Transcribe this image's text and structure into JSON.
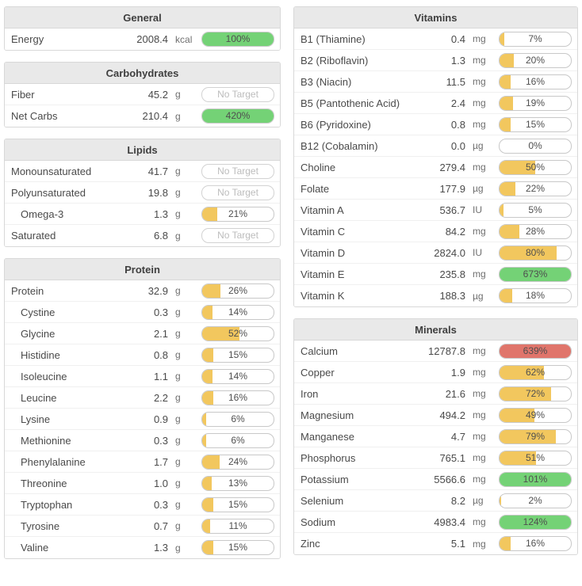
{
  "labels": {
    "no_target": "No Target"
  },
  "colors": {
    "yellow": "#f2c75e",
    "green": "#74d276",
    "red": "#e0756b"
  },
  "layout": [
    [
      "general",
      "carbohydrates",
      "lipids",
      "protein"
    ],
    [
      "vitamins",
      "minerals"
    ]
  ],
  "panels": {
    "general": {
      "title": "General",
      "rows": [
        {
          "label": "Energy",
          "value": "2008.4",
          "unit": "kcal",
          "pct": "100%",
          "color": "green",
          "indent": false
        }
      ]
    },
    "carbohydrates": {
      "title": "Carbohydrates",
      "rows": [
        {
          "label": "Fiber",
          "value": "45.2",
          "unit": "g",
          "pct": "",
          "color": "none",
          "indent": false
        },
        {
          "label": "Net Carbs",
          "value": "210.4",
          "unit": "g",
          "pct": "420%",
          "color": "green",
          "indent": false
        }
      ]
    },
    "lipids": {
      "title": "Lipids",
      "rows": [
        {
          "label": "Monounsaturated",
          "value": "41.7",
          "unit": "g",
          "pct": "",
          "color": "none",
          "indent": false
        },
        {
          "label": "Polyunsaturated",
          "value": "19.8",
          "unit": "g",
          "pct": "",
          "color": "none",
          "indent": false
        },
        {
          "label": "Omega-3",
          "value": "1.3",
          "unit": "g",
          "pct": "21%",
          "color": "yellow",
          "indent": true
        },
        {
          "label": "Saturated",
          "value": "6.8",
          "unit": "g",
          "pct": "",
          "color": "none",
          "indent": false
        }
      ]
    },
    "protein": {
      "title": "Protein",
      "rows": [
        {
          "label": "Protein",
          "value": "32.9",
          "unit": "g",
          "pct": "26%",
          "color": "yellow",
          "indent": false
        },
        {
          "label": "Cystine",
          "value": "0.3",
          "unit": "g",
          "pct": "14%",
          "color": "yellow",
          "indent": true
        },
        {
          "label": "Glycine",
          "value": "2.1",
          "unit": "g",
          "pct": "52%",
          "color": "yellow",
          "indent": true
        },
        {
          "label": "Histidine",
          "value": "0.8",
          "unit": "g",
          "pct": "15%",
          "color": "yellow",
          "indent": true
        },
        {
          "label": "Isoleucine",
          "value": "1.1",
          "unit": "g",
          "pct": "14%",
          "color": "yellow",
          "indent": true
        },
        {
          "label": "Leucine",
          "value": "2.2",
          "unit": "g",
          "pct": "16%",
          "color": "yellow",
          "indent": true
        },
        {
          "label": "Lysine",
          "value": "0.9",
          "unit": "g",
          "pct": "6%",
          "color": "yellow",
          "indent": true
        },
        {
          "label": "Methionine",
          "value": "0.3",
          "unit": "g",
          "pct": "6%",
          "color": "yellow",
          "indent": true
        },
        {
          "label": "Phenylalanine",
          "value": "1.7",
          "unit": "g",
          "pct": "24%",
          "color": "yellow",
          "indent": true
        },
        {
          "label": "Threonine",
          "value": "1.0",
          "unit": "g",
          "pct": "13%",
          "color": "yellow",
          "indent": true
        },
        {
          "label": "Tryptophan",
          "value": "0.3",
          "unit": "g",
          "pct": "15%",
          "color": "yellow",
          "indent": true
        },
        {
          "label": "Tyrosine",
          "value": "0.7",
          "unit": "g",
          "pct": "11%",
          "color": "yellow",
          "indent": true
        },
        {
          "label": "Valine",
          "value": "1.3",
          "unit": "g",
          "pct": "15%",
          "color": "yellow",
          "indent": true
        }
      ]
    },
    "vitamins": {
      "title": "Vitamins",
      "rows": [
        {
          "label": "B1 (Thiamine)",
          "value": "0.4",
          "unit": "mg",
          "pct": "7%",
          "color": "yellow",
          "indent": false
        },
        {
          "label": "B2 (Riboflavin)",
          "value": "1.3",
          "unit": "mg",
          "pct": "20%",
          "color": "yellow",
          "indent": false
        },
        {
          "label": "B3 (Niacin)",
          "value": "11.5",
          "unit": "mg",
          "pct": "16%",
          "color": "yellow",
          "indent": false
        },
        {
          "label": "B5 (Pantothenic Acid)",
          "value": "2.4",
          "unit": "mg",
          "pct": "19%",
          "color": "yellow",
          "indent": false
        },
        {
          "label": "B6 (Pyridoxine)",
          "value": "0.8",
          "unit": "mg",
          "pct": "15%",
          "color": "yellow",
          "indent": false
        },
        {
          "label": "B12 (Cobalamin)",
          "value": "0.0",
          "unit": "µg",
          "pct": "0%",
          "color": "yellow",
          "indent": false
        },
        {
          "label": "Choline",
          "value": "279.4",
          "unit": "mg",
          "pct": "50%",
          "color": "yellow",
          "indent": false
        },
        {
          "label": "Folate",
          "value": "177.9",
          "unit": "µg",
          "pct": "22%",
          "color": "yellow",
          "indent": false
        },
        {
          "label": "Vitamin A",
          "value": "536.7",
          "unit": "IU",
          "pct": "5%",
          "color": "yellow",
          "indent": false
        },
        {
          "label": "Vitamin C",
          "value": "84.2",
          "unit": "mg",
          "pct": "28%",
          "color": "yellow",
          "indent": false
        },
        {
          "label": "Vitamin D",
          "value": "2824.0",
          "unit": "IU",
          "pct": "80%",
          "color": "yellow",
          "indent": false
        },
        {
          "label": "Vitamin E",
          "value": "235.8",
          "unit": "mg",
          "pct": "673%",
          "color": "green",
          "indent": false
        },
        {
          "label": "Vitamin K",
          "value": "188.3",
          "unit": "µg",
          "pct": "18%",
          "color": "yellow",
          "indent": false
        }
      ]
    },
    "minerals": {
      "title": "Minerals",
      "rows": [
        {
          "label": "Calcium",
          "value": "12787.8",
          "unit": "mg",
          "pct": "639%",
          "color": "red",
          "indent": false
        },
        {
          "label": "Copper",
          "value": "1.9",
          "unit": "mg",
          "pct": "62%",
          "color": "yellow",
          "indent": false
        },
        {
          "label": "Iron",
          "value": "21.6",
          "unit": "mg",
          "pct": "72%",
          "color": "yellow",
          "indent": false
        },
        {
          "label": "Magnesium",
          "value": "494.2",
          "unit": "mg",
          "pct": "49%",
          "color": "yellow",
          "indent": false
        },
        {
          "label": "Manganese",
          "value": "4.7",
          "unit": "mg",
          "pct": "79%",
          "color": "yellow",
          "indent": false
        },
        {
          "label": "Phosphorus",
          "value": "765.1",
          "unit": "mg",
          "pct": "51%",
          "color": "yellow",
          "indent": false
        },
        {
          "label": "Potassium",
          "value": "5566.6",
          "unit": "mg",
          "pct": "101%",
          "color": "green",
          "indent": false
        },
        {
          "label": "Selenium",
          "value": "8.2",
          "unit": "µg",
          "pct": "2%",
          "color": "yellow",
          "indent": false
        },
        {
          "label": "Sodium",
          "value": "4983.4",
          "unit": "mg",
          "pct": "124%",
          "color": "green",
          "indent": false
        },
        {
          "label": "Zinc",
          "value": "5.1",
          "unit": "mg",
          "pct": "16%",
          "color": "yellow",
          "indent": false
        }
      ]
    }
  }
}
